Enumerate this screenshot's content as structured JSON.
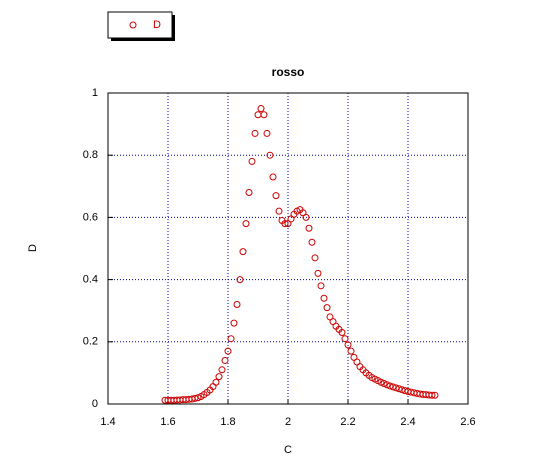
{
  "chart_data": {
    "type": "scatter",
    "title": "rosso",
    "x_label": "C",
    "y_label": "D",
    "series": [
      {
        "name": "D",
        "color": "#cc0000",
        "x": [
          1.59,
          1.6,
          1.61,
          1.62,
          1.63,
          1.64,
          1.65,
          1.66,
          1.67,
          1.68,
          1.69,
          1.7,
          1.71,
          1.72,
          1.73,
          1.74,
          1.75,
          1.76,
          1.77,
          1.78,
          1.79,
          1.8,
          1.81,
          1.82,
          1.83,
          1.84,
          1.85,
          1.86,
          1.87,
          1.88,
          1.89,
          1.9,
          1.91,
          1.92,
          1.93,
          1.94,
          1.95,
          1.96,
          1.97,
          1.98,
          1.99,
          2.0,
          2.01,
          2.02,
          2.03,
          2.04,
          2.05,
          2.06,
          2.07,
          2.08,
          2.09,
          2.1,
          2.11,
          2.12,
          2.13,
          2.14,
          2.15,
          2.16,
          2.17,
          2.18,
          2.19,
          2.2,
          2.21,
          2.22,
          2.23,
          2.24,
          2.25,
          2.26,
          2.27,
          2.28,
          2.29,
          2.3,
          2.31,
          2.32,
          2.33,
          2.34,
          2.35,
          2.36,
          2.37,
          2.38,
          2.39,
          2.4,
          2.41,
          2.42,
          2.43,
          2.44,
          2.45,
          2.46,
          2.47,
          2.48,
          2.49
        ],
        "values": [
          0.012,
          0.012,
          0.012,
          0.012,
          0.013,
          0.013,
          0.014,
          0.014,
          0.015,
          0.016,
          0.018,
          0.02,
          0.024,
          0.03,
          0.037,
          0.045,
          0.056,
          0.07,
          0.088,
          0.11,
          0.14,
          0.17,
          0.21,
          0.26,
          0.32,
          0.4,
          0.49,
          0.58,
          0.68,
          0.78,
          0.87,
          0.93,
          0.95,
          0.93,
          0.87,
          0.8,
          0.73,
          0.67,
          0.62,
          0.59,
          0.58,
          0.58,
          0.595,
          0.61,
          0.62,
          0.625,
          0.615,
          0.6,
          0.565,
          0.52,
          0.47,
          0.42,
          0.38,
          0.34,
          0.31,
          0.28,
          0.265,
          0.25,
          0.24,
          0.23,
          0.21,
          0.19,
          0.17,
          0.15,
          0.135,
          0.12,
          0.11,
          0.1,
          0.092,
          0.085,
          0.08,
          0.075,
          0.07,
          0.066,
          0.062,
          0.058,
          0.055,
          0.052,
          0.049,
          0.046,
          0.043,
          0.04,
          0.038,
          0.036,
          0.034,
          0.032,
          0.031,
          0.03,
          0.029,
          0.028,
          0.028
        ]
      }
    ],
    "xlim": [
      1.4,
      2.6
    ],
    "xticks": [
      1.4,
      1.6,
      1.8,
      2,
      2.2,
      2.4,
      2.6
    ],
    "ylim": [
      0,
      1
    ],
    "yticks": [
      0,
      0.2,
      0.4,
      0.6,
      0.8,
      1
    ],
    "grid": true,
    "grid_color": "#0000aa",
    "legend": "top-left"
  }
}
